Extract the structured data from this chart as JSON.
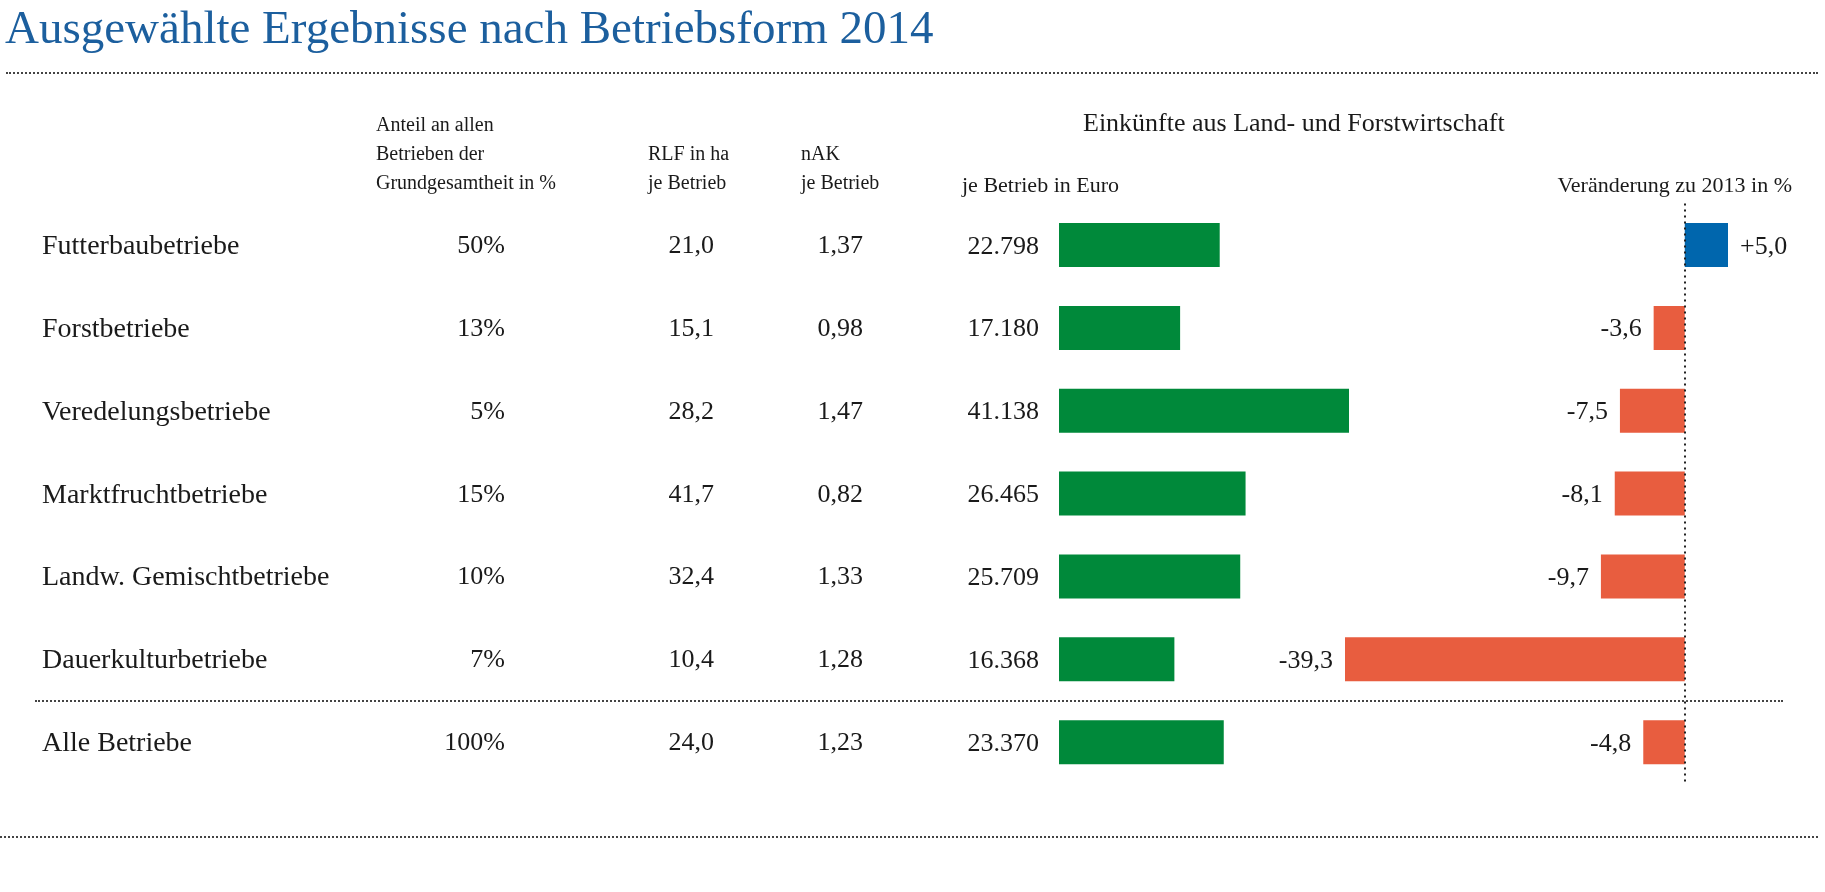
{
  "chart_data": [
    {
      "type": "other",
      "title": "Ausgewählte Ergebnisse nach Betriebsform 2014",
      "categories": [
        "Futterbaubetriebe",
        "Forstbetriebe",
        "Veredelungsbetriebe",
        "Marktfruchtbetriebe",
        "Landw. Gemischtbetriebe",
        "Dauerkulturbetriebe",
        "Alle Betriebe"
      ],
      "series": [
        {
          "name": "Anteil an allen\nBetrieben der\nGrundgesamtheit in %",
          "values": [
            50,
            13,
            5,
            15,
            10,
            7,
            100
          ],
          "value_labels": [
            "50%",
            "13%",
            "5%",
            "15%",
            "10%",
            "7%",
            "100%"
          ]
        },
        {
          "name": "RLF in ha\nje Betrieb",
          "values": [
            21.0,
            15.1,
            28.2,
            41.7,
            32.4,
            10.4,
            24.0
          ],
          "value_labels": [
            "21,0",
            "15,1",
            "28,2",
            "41,7",
            "32,4",
            "10,4",
            "24,0"
          ]
        },
        {
          "name": "nAK\nje Betrieb",
          "values": [
            1.37,
            0.98,
            1.47,
            0.82,
            1.33,
            1.28,
            1.23
          ],
          "value_labels": [
            "1,37",
            "0,98",
            "1,47",
            "0,82",
            "1,33",
            "1,28",
            "1,23"
          ]
        }
      ]
    },
    {
      "type": "bar",
      "orientation": "horizontal",
      "title": "Einkünfte aus Land- und Forstwirtschaft",
      "subtitle": "je Betrieb in Euro",
      "categories": [
        null,
        null,
        null,
        null,
        null,
        null,
        null
      ],
      "values": [
        22798,
        17180,
        41138,
        26465,
        25709,
        16368,
        23370
      ],
      "value_labels": [
        "22.798",
        "17.180",
        "41.138",
        "26.465",
        "25.709",
        "16.368",
        "23.370"
      ],
      "color": "#00893a",
      "tick_labels": false
    },
    {
      "type": "bar",
      "orientation": "horizontal",
      "title": "Veränderung zu 2013 in %",
      "categories": [
        null,
        null,
        null,
        null,
        null,
        null,
        null
      ],
      "values": [
        5.0,
        -3.6,
        -7.5,
        -8.1,
        -9.7,
        -39.3,
        -4.8
      ],
      "value_labels": [
        "+5,0",
        "-3,6",
        "-7,5",
        "-8,1",
        "-9,7",
        "-39,3",
        "-4,8"
      ],
      "colors": [
        "#0066ad",
        "#e85d3f",
        "#e85d3f",
        "#e85d3f",
        "#e85d3f",
        "#e85d3f",
        "#e85d3f"
      ],
      "ref_lines": [
        {
          "axis": "x",
          "value": 0,
          "line_style": "dotted",
          "color": "#222222"
        }
      ],
      "tick_labels": false
    }
  ]
}
